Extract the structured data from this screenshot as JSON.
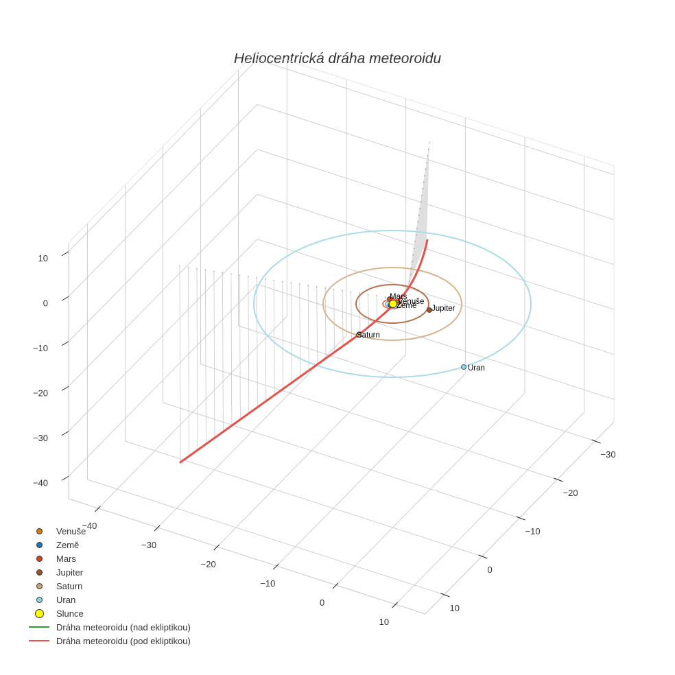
{
  "title": "Heliocentrická dráha meteoroidu",
  "colors": {
    "venuse": "#d47f0c",
    "zeme": "#1f77b4",
    "mars": "#d2491c",
    "jupiter": "#a0522d",
    "saturn": "#c8a27a",
    "uran": "#8fd3e8",
    "slunce": "#ffff00",
    "orbit_venuse": "#e8a15e",
    "orbit_zeme": "#5aa0d6",
    "orbit_mars": "#e2643a",
    "orbit_jupiter": "#b5704d",
    "orbit_saturn": "#d6b48f",
    "orbit_uran": "#a9dbe8",
    "traj_above": "#2ca02c",
    "traj_below": "#e8504a",
    "grid": "#cfcfcf",
    "drop_lines": "#c8c8c8"
  },
  "legend": [
    {
      "label": "Venuše",
      "type": "marker",
      "color_key": "venuse"
    },
    {
      "label": "Země",
      "type": "marker",
      "color_key": "zeme"
    },
    {
      "label": "Mars",
      "type": "marker",
      "color_key": "mars"
    },
    {
      "label": "Jupiter",
      "type": "marker",
      "color_key": "jupiter"
    },
    {
      "label": "Saturn",
      "type": "marker",
      "color_key": "saturn"
    },
    {
      "label": "Uran",
      "type": "marker",
      "color_key": "uran"
    },
    {
      "label": "Slunce",
      "type": "marker-large",
      "color_key": "slunce"
    },
    {
      "label": "Dráha meteoroidu (nad ekliptikou)",
      "type": "line",
      "color_key": "traj_above"
    },
    {
      "label": "Dráha meteoroidu (pod ekliptikou)",
      "type": "line",
      "color_key": "traj_below"
    }
  ],
  "planet_labels": [
    "Mars",
    "Venuše",
    "Země",
    "Jupiter",
    "Saturn",
    "Uran"
  ],
  "axes": {
    "x_ticks": [
      "−40",
      "−30",
      "−20",
      "−10",
      "0",
      "10"
    ],
    "y_ticks": [
      "−30",
      "−20",
      "−10",
      "0",
      "10"
    ],
    "z_ticks": [
      "10",
      "0",
      "−10",
      "−20",
      "−30",
      "−40"
    ]
  },
  "chart_data": {
    "type": "scatter3d",
    "title": "Heliocentrická dráha meteoroidu",
    "xlabel": "",
    "ylabel": "",
    "zlabel": "",
    "xlim": [
      -45,
      15
    ],
    "ylim": [
      -35,
      15
    ],
    "zlim": [
      -45,
      12
    ],
    "x_ticks": [
      -40,
      -30,
      -20,
      -10,
      0,
      10
    ],
    "y_ticks": [
      -30,
      -20,
      -10,
      0,
      10
    ],
    "z_ticks": [
      -40,
      -30,
      -20,
      -10,
      0,
      10
    ],
    "grid": true,
    "legend_position": "lower left",
    "bodies": [
      {
        "name": "Slunce",
        "x": 0,
        "y": 0,
        "z": 0
      },
      {
        "name": "Venuše",
        "orbit_radius_au": 0.72
      },
      {
        "name": "Země",
        "orbit_radius_au": 1.0
      },
      {
        "name": "Mars",
        "orbit_radius_au": 1.52
      },
      {
        "name": "Jupiter",
        "orbit_radius_au": 5.2
      },
      {
        "name": "Saturn",
        "orbit_radius_au": 9.5
      },
      {
        "name": "Uran",
        "orbit_radius_au": 19.2
      }
    ],
    "series": [
      {
        "name": "Dráha meteoroidu (nad ekliptikou)",
        "points": []
      },
      {
        "name": "Dráha meteoroidu (pod ekliptikou)",
        "points_approx": [
          [
            -42,
            -8,
            -28
          ],
          [
            -30,
            -6,
            -20
          ],
          [
            -20,
            -4,
            -13
          ],
          [
            -10,
            -2,
            -6
          ],
          [
            0,
            0,
            0
          ],
          [
            3,
            1,
            6
          ]
        ]
      }
    ]
  }
}
